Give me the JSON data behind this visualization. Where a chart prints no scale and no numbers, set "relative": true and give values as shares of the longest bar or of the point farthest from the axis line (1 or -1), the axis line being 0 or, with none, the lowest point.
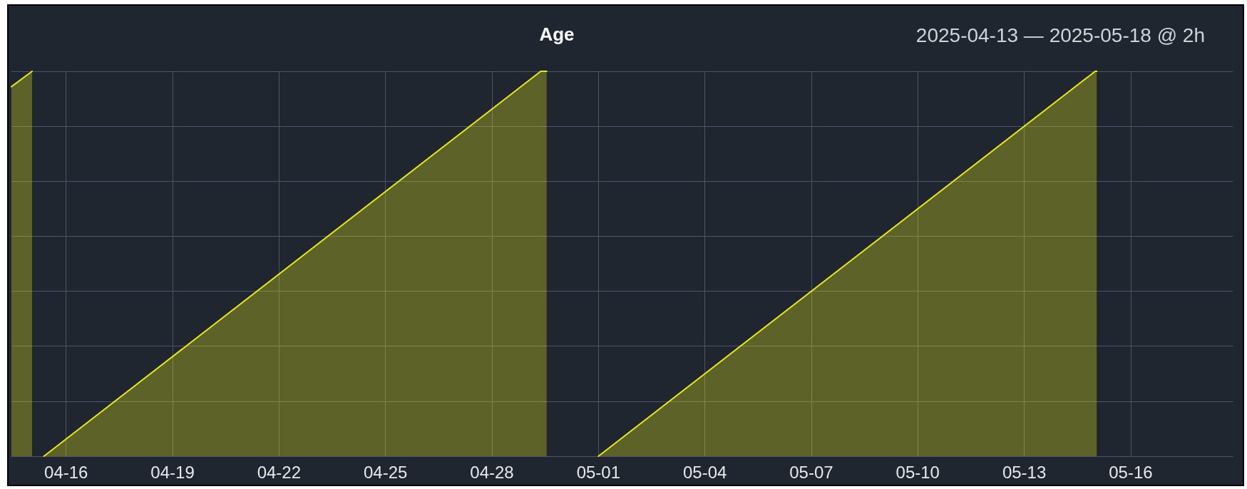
{
  "chart_data": {
    "type": "area",
    "title": "Age",
    "subtitle": "2025-04-13 — 2025-05-18 @ 2h",
    "relative": true,
    "series": [
      {
        "color": "#e8e81a",
        "x": [
          "2025-04-14T11:00",
          "2025-04-15T01:00"
        ],
        "values": [
          0.96,
          1
        ]
      },
      {
        "color": "#e8e81a",
        "x": [
          "2025-04-15T09:00",
          "2025-04-29T09:00",
          "2025-04-29T13:00"
        ],
        "values": [
          0,
          1,
          1
        ]
      },
      {
        "color": "#e8e81a",
        "x": [
          "2025-05-01T00:00",
          "2025-05-15T00:00",
          "2025-05-15T01:00"
        ],
        "values": [
          0,
          1,
          1
        ]
      }
    ],
    "xlim": [
      "2025-04-14T11:00",
      "2025-05-18T21:00"
    ],
    "xticks": [
      {
        "value": "2025-04-16",
        "label": "04-16"
      },
      {
        "value": "2025-04-19",
        "label": "04-19"
      },
      {
        "value": "2025-04-22",
        "label": "04-22"
      },
      {
        "value": "2025-04-25",
        "label": "04-25"
      },
      {
        "value": "2025-04-28",
        "label": "04-28"
      },
      {
        "value": "2025-05-01",
        "label": "05-01"
      },
      {
        "value": "2025-05-04",
        "label": "05-04"
      },
      {
        "value": "2025-05-07",
        "label": "05-07"
      },
      {
        "value": "2025-05-10",
        "label": "05-10"
      },
      {
        "value": "2025-05-13",
        "label": "05-13"
      },
      {
        "value": "2025-05-16",
        "label": "05-16"
      }
    ],
    "grid": true,
    "marker": "none",
    "line_style": "solid"
  }
}
